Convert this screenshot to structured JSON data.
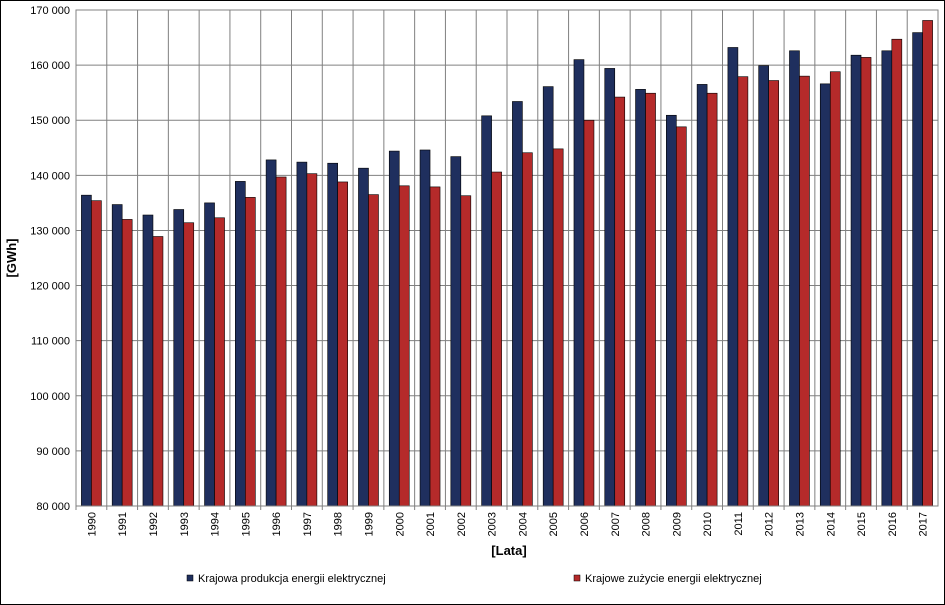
{
  "chart_data": {
    "type": "bar",
    "title": "",
    "xlabel": "[Lata]",
    "ylabel": "[GWh]",
    "ylim": [
      80000,
      170000
    ],
    "y_ticks": [
      "80 000",
      "90 000",
      "100 000",
      "110 000",
      "120 000",
      "130 000",
      "140 000",
      "150 000",
      "160 000",
      "170 000"
    ],
    "grid": true,
    "legend_position": "bottom",
    "categories": [
      "1990",
      "1991",
      "1992",
      "1993",
      "1994",
      "1995",
      "1996",
      "1997",
      "1998",
      "1999",
      "2000",
      "2001",
      "2002",
      "2003",
      "2004",
      "2005",
      "2006",
      "2007",
      "2008",
      "2009",
      "2010",
      "2011",
      "2012",
      "2013",
      "2014",
      "2015",
      "2016",
      "2017"
    ],
    "series": [
      {
        "name": "Krajowa produkcja energii elektrycznej",
        "color": "#1f2f5e",
        "values": [
          136400,
          134700,
          132800,
          133800,
          135000,
          138900,
          142800,
          142400,
          142200,
          141300,
          144400,
          144600,
          143400,
          150800,
          153400,
          156100,
          161000,
          159400,
          155600,
          150900,
          156500,
          163200,
          159900,
          162600,
          156600,
          161800,
          162600,
          165900
        ]
      },
      {
        "name": "Krajowe zużycie energii elektrycznej",
        "color": "#b52a2a",
        "values": [
          135400,
          132000,
          128900,
          131400,
          132300,
          136000,
          139700,
          140300,
          138800,
          136500,
          138100,
          137900,
          136300,
          140600,
          144100,
          144800,
          150000,
          154200,
          154900,
          148800,
          154900,
          157900,
          157200,
          158000,
          158800,
          161400,
          164700,
          168100
        ]
      }
    ]
  }
}
